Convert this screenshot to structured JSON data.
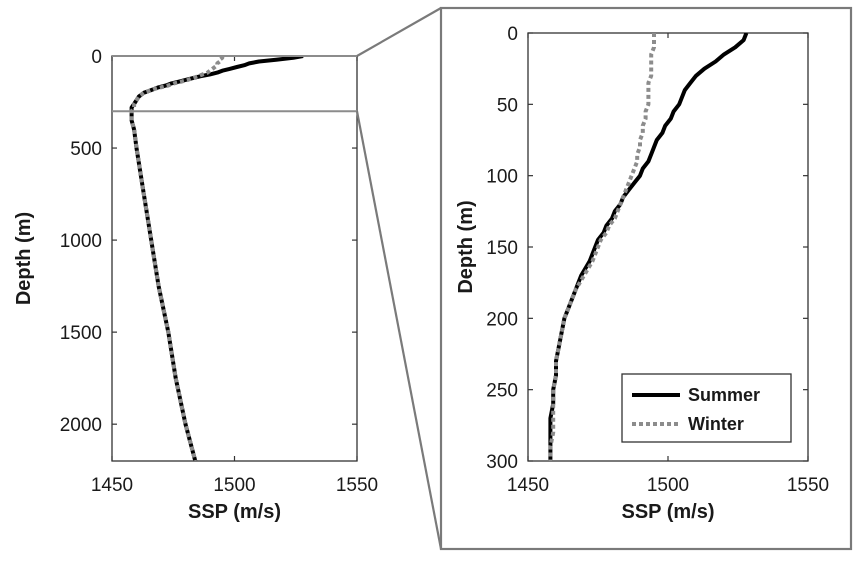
{
  "chart_data": [
    {
      "type": "line",
      "panel": "full-profile",
      "xlabel": "SSP (m/s)",
      "ylabel": "Depth (m)",
      "xlim": [
        1450,
        1550
      ],
      "ylim": [
        0,
        2200
      ],
      "y_reversed": true,
      "xticks": [
        1450,
        1500,
        1550
      ],
      "yticks": [
        0,
        500,
        1000,
        1500,
        2000
      ],
      "grid": false,
      "zoom_region": {
        "depth_range": [
          0,
          300
        ]
      },
      "series": [
        {
          "color": "#000000",
          "style": "solid",
          "points": [
            [
              1528,
              0
            ],
            [
              1524,
              10
            ],
            [
              1517,
              20
            ],
            [
              1510,
              30
            ],
            [
              1506,
              40
            ],
            [
              1504,
              50
            ],
            [
              1501,
              60
            ],
            [
              1498,
              70
            ],
            [
              1495,
              80
            ],
            [
              1493,
              90
            ],
            [
              1490,
              100
            ],
            [
              1486,
              110
            ],
            [
              1483,
              120
            ],
            [
              1480,
              130
            ],
            [
              1477,
              140
            ],
            [
              1474,
              150
            ],
            [
              1472,
              160
            ],
            [
              1469,
              170
            ],
            [
              1467,
              180
            ],
            [
              1465,
              190
            ],
            [
              1463,
              200
            ],
            [
              1461,
              220
            ],
            [
              1460,
              240
            ],
            [
              1459,
              260
            ],
            [
              1458,
              280
            ],
            [
              1458,
              300
            ],
            [
              1458,
              350
            ],
            [
              1459,
              400
            ],
            [
              1460,
              500
            ],
            [
              1463,
              750
            ],
            [
              1466,
              1000
            ],
            [
              1469,
              1250
            ],
            [
              1473,
              1500
            ],
            [
              1476,
              1750
            ],
            [
              1480,
              2000
            ],
            [
              1484,
              2200
            ]
          ]
        },
        {
          "color": "#8c8c8c",
          "style": "dotted",
          "points": [
            [
              1495,
              0
            ],
            [
              1495,
              10
            ],
            [
              1494,
              20
            ],
            [
              1494,
              30
            ],
            [
              1493,
              40
            ],
            [
              1493,
              50
            ],
            [
              1492,
              60
            ],
            [
              1491,
              70
            ],
            [
              1490,
              80
            ],
            [
              1489,
              90
            ],
            [
              1487,
              100
            ],
            [
              1485,
              110
            ],
            [
              1483,
              120
            ],
            [
              1481,
              130
            ],
            [
              1478,
              140
            ],
            [
              1475,
              150
            ],
            [
              1473,
              160
            ],
            [
              1470,
              170
            ],
            [
              1467,
              180
            ],
            [
              1465,
              190
            ],
            [
              1463,
              200
            ],
            [
              1461,
              220
            ],
            [
              1460,
              240
            ],
            [
              1459,
              260
            ],
            [
              1459,
              280
            ],
            [
              1458,
              300
            ],
            [
              1458,
              350
            ],
            [
              1459,
              400
            ],
            [
              1460,
              500
            ],
            [
              1463,
              750
            ],
            [
              1466,
              1000
            ],
            [
              1469,
              1250
            ],
            [
              1473,
              1500
            ],
            [
              1476,
              1750
            ],
            [
              1480,
              2000
            ],
            [
              1484,
              2200
            ]
          ]
        }
      ]
    },
    {
      "type": "line",
      "panel": "zoom-0-300m",
      "xlabel": "SSP (m/s)",
      "ylabel": "Depth (m)",
      "xlim": [
        1450,
        1550
      ],
      "ylim": [
        0,
        300
      ],
      "y_reversed": true,
      "xticks": [
        1450,
        1500,
        1550
      ],
      "yticks": [
        0,
        50,
        100,
        150,
        200,
        250,
        300
      ],
      "grid": false,
      "legend_position": "bottom-right",
      "series": [
        {
          "name": "Summer",
          "color": "#000000",
          "style": "solid",
          "points": [
            [
              1528,
              0
            ],
            [
              1527,
              5
            ],
            [
              1524,
              10
            ],
            [
              1520,
              15
            ],
            [
              1517,
              20
            ],
            [
              1513,
              25
            ],
            [
              1510,
              30
            ],
            [
              1508,
              35
            ],
            [
              1506,
              40
            ],
            [
              1505,
              45
            ],
            [
              1504,
              50
            ],
            [
              1502,
              55
            ],
            [
              1501,
              60
            ],
            [
              1499,
              65
            ],
            [
              1498,
              70
            ],
            [
              1496,
              75
            ],
            [
              1495,
              80
            ],
            [
              1494,
              85
            ],
            [
              1493,
              90
            ],
            [
              1491,
              95
            ],
            [
              1490,
              100
            ],
            [
              1488,
              105
            ],
            [
              1486,
              110
            ],
            [
              1484,
              115
            ],
            [
              1483,
              120
            ],
            [
              1481,
              125
            ],
            [
              1480,
              130
            ],
            [
              1478,
              135
            ],
            [
              1477,
              140
            ],
            [
              1475,
              145
            ],
            [
              1474,
              150
            ],
            [
              1472,
              160
            ],
            [
              1469,
              170
            ],
            [
              1467,
              180
            ],
            [
              1465,
              190
            ],
            [
              1463,
              200
            ],
            [
              1462,
              210
            ],
            [
              1461,
              220
            ],
            [
              1460,
              230
            ],
            [
              1460,
              240
            ],
            [
              1459,
              250
            ],
            [
              1459,
              260
            ],
            [
              1458,
              270
            ],
            [
              1458,
              280
            ],
            [
              1458,
              290
            ],
            [
              1458,
              300
            ]
          ]
        },
        {
          "name": "Winter",
          "color": "#8c8c8c",
          "style": "dotted",
          "points": [
            [
              1495,
              0
            ],
            [
              1495,
              5
            ],
            [
              1495,
              10
            ],
            [
              1494,
              15
            ],
            [
              1494,
              20
            ],
            [
              1494,
              25
            ],
            [
              1494,
              30
            ],
            [
              1493,
              35
            ],
            [
              1493,
              40
            ],
            [
              1493,
              45
            ],
            [
              1493,
              50
            ],
            [
              1492,
              55
            ],
            [
              1492,
              60
            ],
            [
              1491,
              65
            ],
            [
              1491,
              70
            ],
            [
              1490,
              75
            ],
            [
              1490,
              80
            ],
            [
              1489,
              85
            ],
            [
              1489,
              90
            ],
            [
              1488,
              95
            ],
            [
              1487,
              100
            ],
            [
              1486,
              105
            ],
            [
              1485,
              110
            ],
            [
              1484,
              115
            ],
            [
              1483,
              120
            ],
            [
              1482,
              125
            ],
            [
              1481,
              130
            ],
            [
              1479,
              135
            ],
            [
              1478,
              140
            ],
            [
              1476,
              145
            ],
            [
              1475,
              150
            ],
            [
              1473,
              160
            ],
            [
              1470,
              170
            ],
            [
              1467,
              180
            ],
            [
              1465,
              190
            ],
            [
              1463,
              200
            ],
            [
              1462,
              210
            ],
            [
              1461,
              220
            ],
            [
              1460,
              230
            ],
            [
              1460,
              240
            ],
            [
              1459,
              250
            ],
            [
              1459,
              260
            ],
            [
              1459,
              270
            ],
            [
              1459,
              280
            ],
            [
              1458,
              290
            ],
            [
              1458,
              300
            ]
          ]
        }
      ]
    }
  ]
}
